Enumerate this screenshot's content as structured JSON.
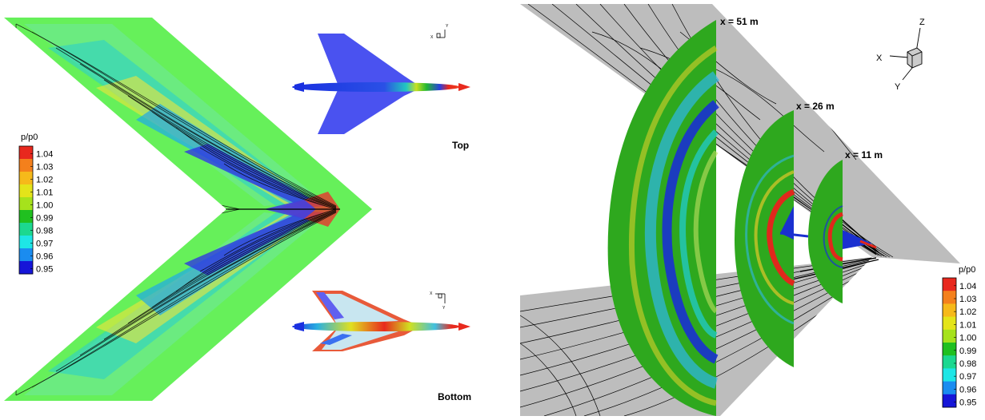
{
  "left": {
    "legend": {
      "title": "p/p0",
      "ticks": [
        "1.04",
        "1.03",
        "1.02",
        "1.01",
        "1.00",
        "0.99",
        "0.98",
        "0.97",
        "0.96",
        "0.95"
      ],
      "colors": [
        "#e8281e",
        "#f4801c",
        "#f6b91a",
        "#e4e41a",
        "#a6e21c",
        "#20c020",
        "#1cd890",
        "#1ee6e6",
        "#1a8cf0",
        "#1616d8"
      ]
    },
    "views": {
      "top_label": "Top",
      "bottom_label": "Bottom"
    },
    "axes_top": {
      "x": "X",
      "y": "Y"
    },
    "axes_bottom": {
      "x": "X",
      "y": "Y"
    }
  },
  "right": {
    "sections": [
      {
        "label": "x = 51 m"
      },
      {
        "label": "x = 26 m"
      },
      {
        "label": "x = 11 m"
      }
    ],
    "axes": {
      "x": "X",
      "y": "Y",
      "z": "Z"
    },
    "legend": {
      "title": "p/p0",
      "ticks": [
        "1.04",
        "1.03",
        "1.02",
        "1.01",
        "1.00",
        "0.99",
        "0.98",
        "0.97",
        "0.96",
        "0.95"
      ],
      "colors": [
        "#e8281e",
        "#f4801c",
        "#f6b91a",
        "#e4e41a",
        "#a6e21c",
        "#20c020",
        "#1cd890",
        "#1ee6e6",
        "#1a8cf0",
        "#1616d8"
      ]
    }
  },
  "colors": {
    "base_green": "#66f05a",
    "plane_gray": "#bdbdbd",
    "section_green": "#2ea81e"
  }
}
